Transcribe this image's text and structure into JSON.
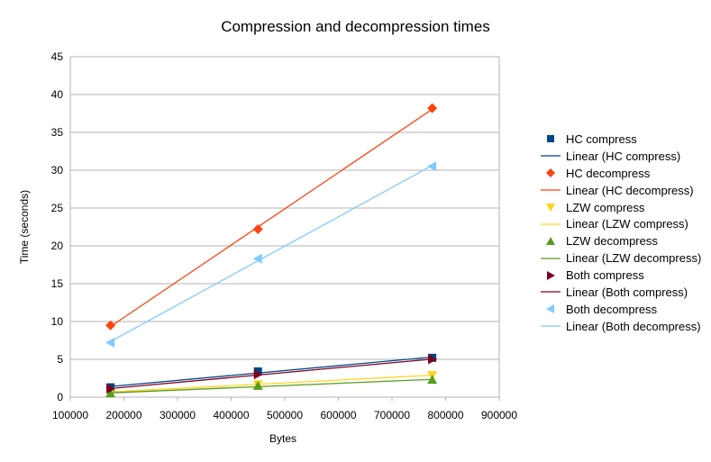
{
  "chart_data": {
    "type": "scatter",
    "title": "Compression and decompression times",
    "xlabel": "Bytes",
    "ylabel": "Time (seconds)",
    "xlim": [
      100000,
      900000
    ],
    "ylim": [
      0,
      45
    ],
    "xticks": [
      "100000",
      "200000",
      "300000",
      "400000",
      "500000",
      "600000",
      "700000",
      "800000",
      "900000"
    ],
    "yticks": [
      "0",
      "5",
      "10",
      "15",
      "20",
      "25",
      "30",
      "35",
      "40",
      "45"
    ],
    "grid": "horizontal",
    "legend_position": "right",
    "series": [
      {
        "name": "HC compress",
        "trend_name": "Linear (HC compress)",
        "color": "#004586",
        "marker": "square",
        "x": [
          175000,
          450000,
          775000
        ],
        "y": [
          1.3,
          3.4,
          5.2
        ]
      },
      {
        "name": "HC decompress",
        "trend_name": "Linear (HC decompress)",
        "color": "#ff420e",
        "marker": "diamond",
        "x": [
          175000,
          450000,
          775000
        ],
        "y": [
          9.5,
          22.2,
          38.2
        ]
      },
      {
        "name": "LZW compress",
        "trend_name": "Linear (LZW compress)",
        "color": "#ffd320",
        "marker": "triangle-down",
        "x": [
          175000,
          450000,
          775000
        ],
        "y": [
          0.7,
          1.7,
          2.9
        ]
      },
      {
        "name": "LZW decompress",
        "trend_name": "Linear (LZW decompress)",
        "color": "#579d1c",
        "marker": "triangle-up",
        "x": [
          175000,
          450000,
          775000
        ],
        "y": [
          0.5,
          1.5,
          2.3
        ]
      },
      {
        "name": "Both compress",
        "trend_name": "Linear (Both compress)",
        "color": "#7e0021",
        "marker": "triangle-right",
        "x": [
          175000,
          450000,
          775000
        ],
        "y": [
          1.1,
          3.0,
          5.0
        ]
      },
      {
        "name": "Both decompress",
        "trend_name": "Linear (Both decompress)",
        "color": "#83caff",
        "marker": "triangle-left",
        "x": [
          175000,
          450000,
          775000
        ],
        "y": [
          7.2,
          18.3,
          30.5
        ]
      }
    ]
  }
}
